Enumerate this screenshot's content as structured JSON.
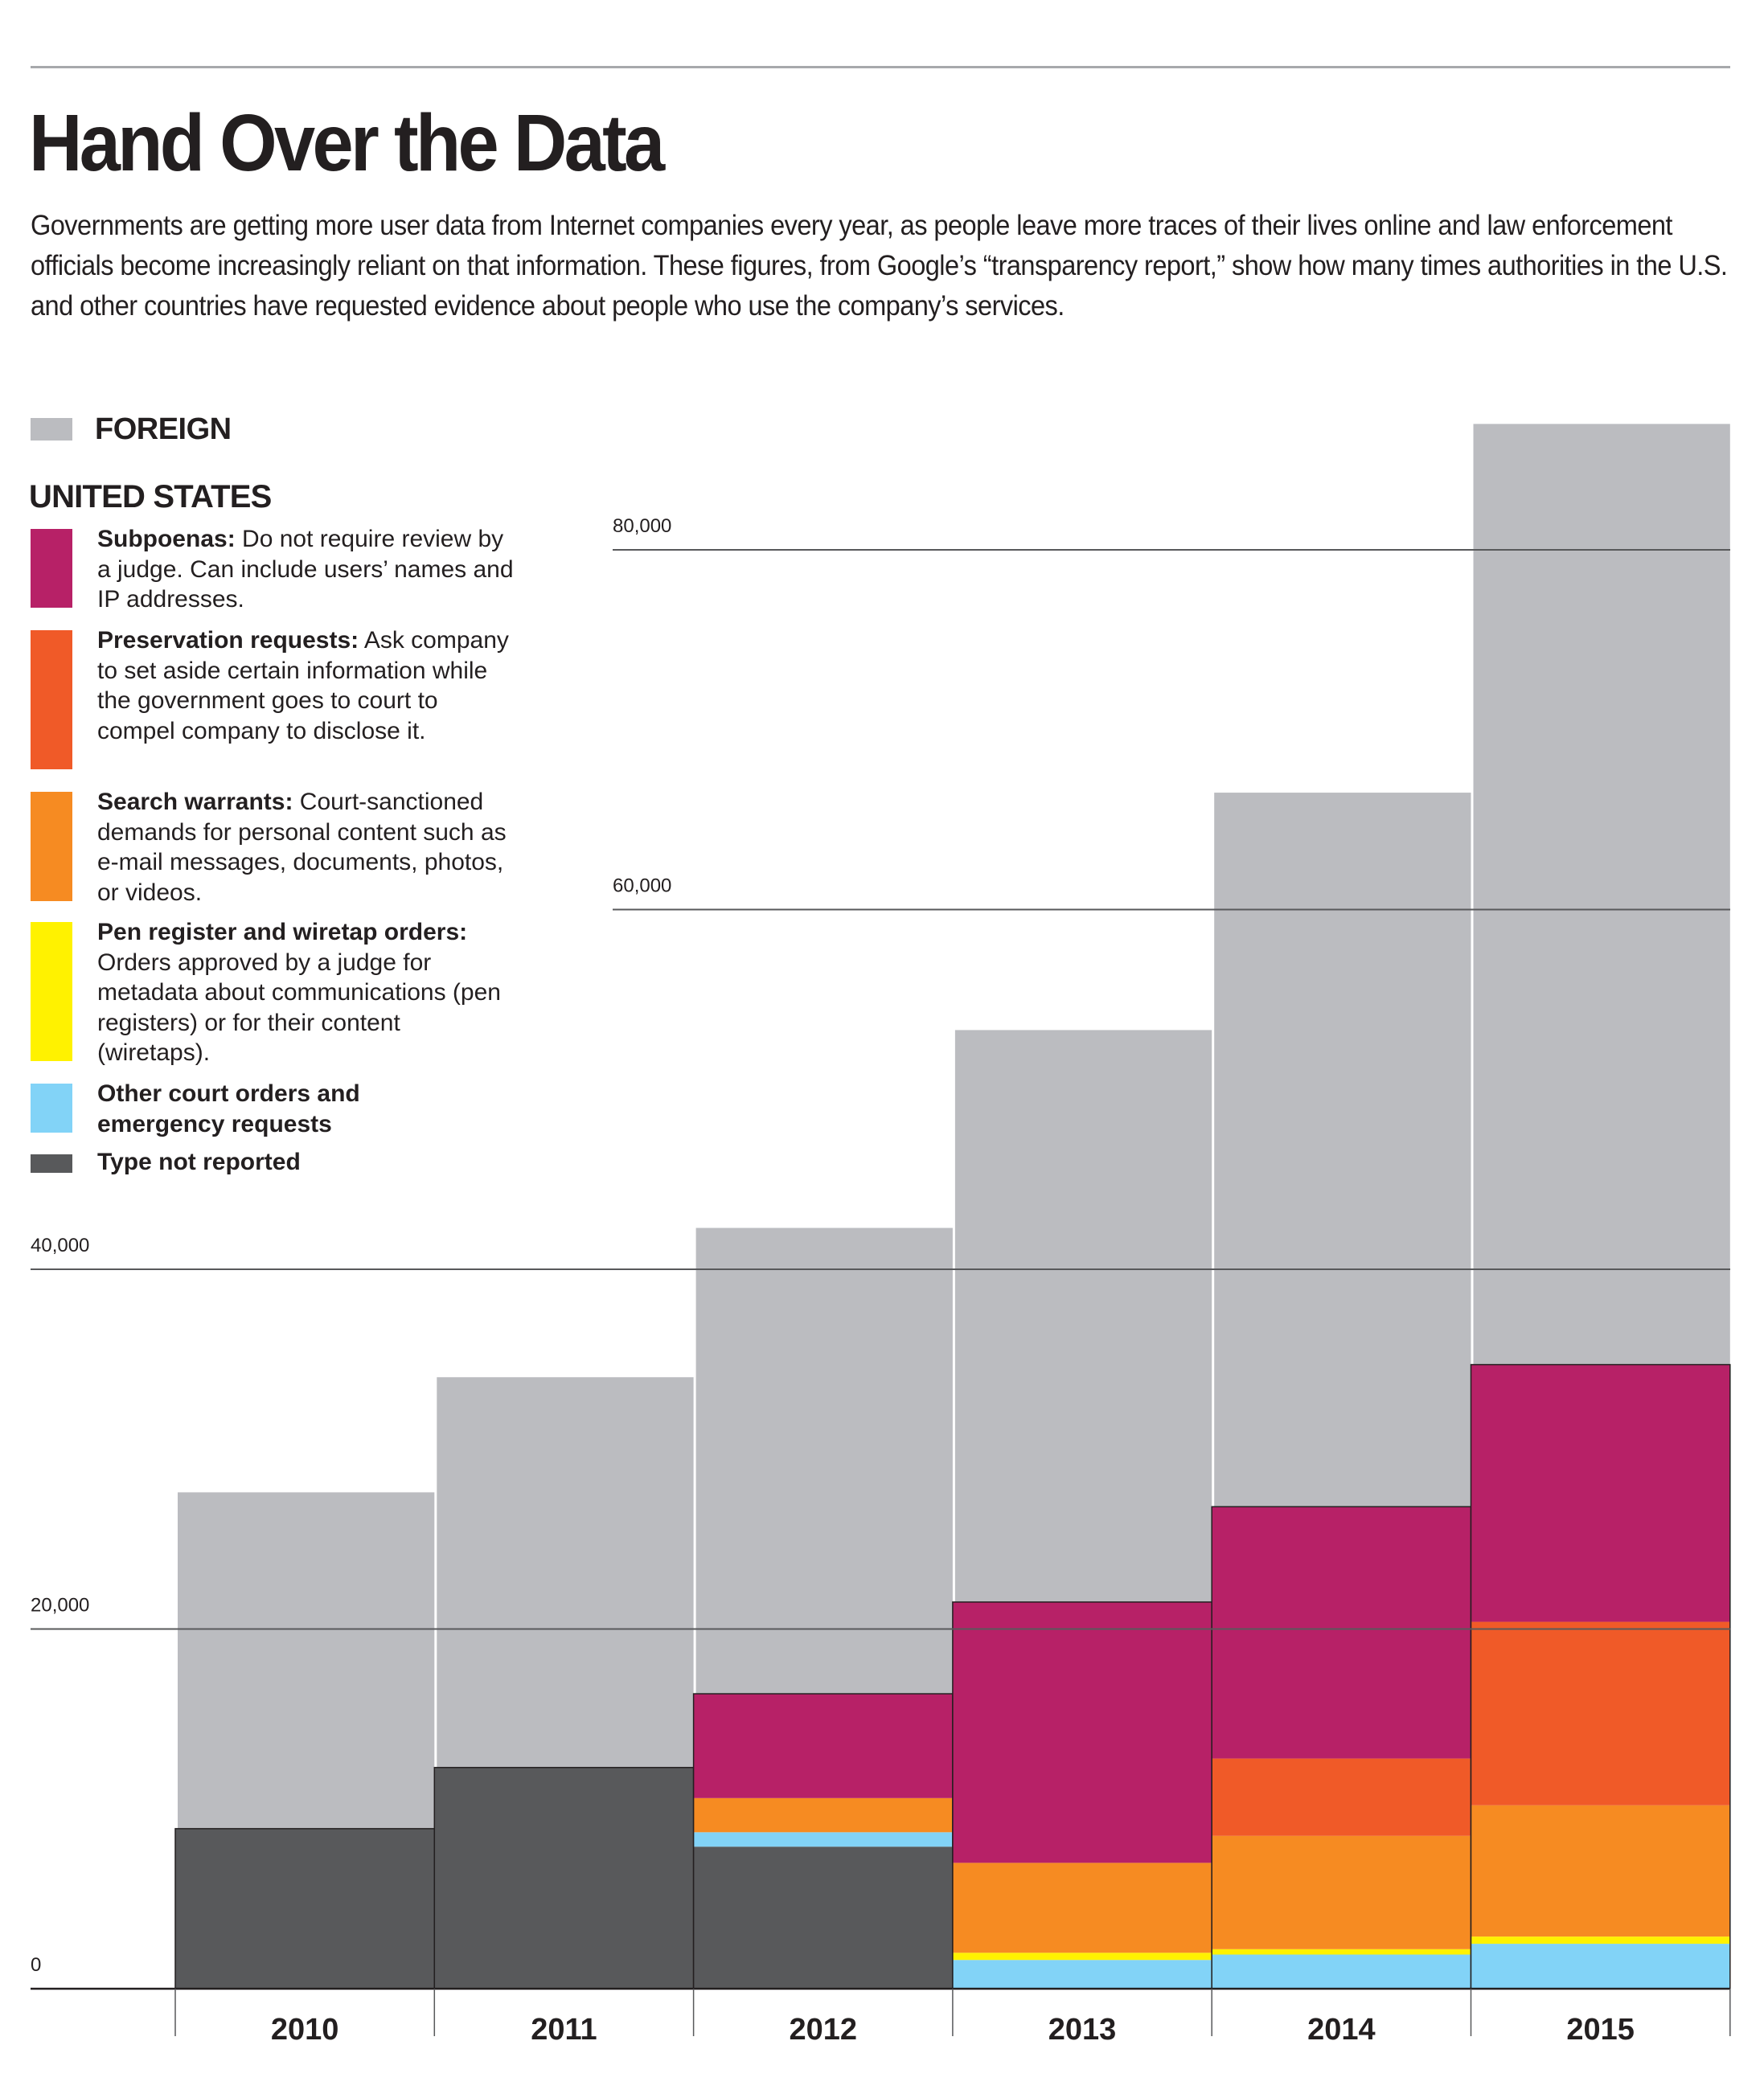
{
  "header": {
    "title": "Hand Over the Data",
    "subtitle": "Governments are getting more user data from Internet companies every year, as people leave more traces of their lives online and law enforcement officials become increasingly reliant on that information. These figures, from Google’s “transparency report,” show how many times authorities in the U.S. and other countries have requested evidence about people who use the company’s services."
  },
  "legend": {
    "foreign": {
      "label": "FOREIGN",
      "color": "#bbbcc0"
    },
    "us_title": "UNITED STATES",
    "items": [
      {
        "key": "subpoenas",
        "bold": "Subpoenas:",
        "text": " Do not require review by a judge. Can include users’ names and IP addresses.",
        "color": "#b72167"
      },
      {
        "key": "preservation",
        "bold": "Preservation requests:",
        "text": " Ask company to set aside certain information while the government goes to court to compel company to disclose it.",
        "color": "#f05a28"
      },
      {
        "key": "search",
        "bold": "Search warrants:",
        "text": " Court-sanctioned demands for personal content such as e-mail messages, documents, photos, or videos.",
        "color": "#f68b22"
      },
      {
        "key": "pen",
        "bold": "Pen register and wiretap orders:",
        "text": " Orders approved by a judge for metadata about communications (pen registers) or for their content (wiretaps).",
        "color": "#fff200"
      },
      {
        "key": "other",
        "bold": "Other court orders and emergency requests",
        "text": "",
        "color": "#82d3f7"
      },
      {
        "key": "not_reported",
        "bold": "Type not reported",
        "text": "",
        "color": "#58595b"
      }
    ]
  },
  "chart_data": {
    "type": "bar",
    "stacked": true,
    "title": "Hand Over the Data",
    "xlabel": "",
    "ylabel": "",
    "ylim": [
      0,
      90000
    ],
    "yticks": [
      0,
      20000,
      40000,
      60000,
      80000
    ],
    "ytick_labels": [
      "0",
      "20,000",
      "40,000",
      "60,000",
      "80,000"
    ],
    "grid": true,
    "legend_position": "top-left",
    "categories": [
      "2010",
      "2011",
      "2012",
      "2013",
      "2014",
      "2015"
    ],
    "series": [
      {
        "name": "Type not reported",
        "key": "not_reported",
        "color": "#58595b",
        "values": [
          8900,
          12300,
          7900,
          0,
          0,
          0
        ]
      },
      {
        "name": "Other court orders and emergency requests",
        "key": "other",
        "color": "#82d3f7",
        "values": [
          0,
          0,
          800,
          1600,
          1900,
          2500
        ]
      },
      {
        "name": "Pen register and wiretap orders",
        "key": "pen",
        "color": "#fff200",
        "values": [
          0,
          0,
          0,
          400,
          300,
          400
        ]
      },
      {
        "name": "Search warrants",
        "key": "search",
        "color": "#f68b22",
        "values": [
          0,
          0,
          1900,
          5000,
          6300,
          7300
        ]
      },
      {
        "name": "Preservation requests",
        "key": "preservation",
        "color": "#f05a28",
        "values": [
          0,
          0,
          0,
          0,
          4300,
          10200
        ]
      },
      {
        "name": "Subpoenas",
        "key": "subpoenas",
        "color": "#b72167",
        "values": [
          0,
          0,
          5800,
          14500,
          14000,
          14300
        ]
      },
      {
        "name": "Foreign",
        "key": "foreign",
        "color": "#bbbcc0",
        "values": [
          18700,
          21700,
          25900,
          31800,
          39700,
          52300
        ]
      }
    ],
    "totals": [
      27600,
      34000,
      42300,
      53300,
      66500,
      87000
    ]
  }
}
